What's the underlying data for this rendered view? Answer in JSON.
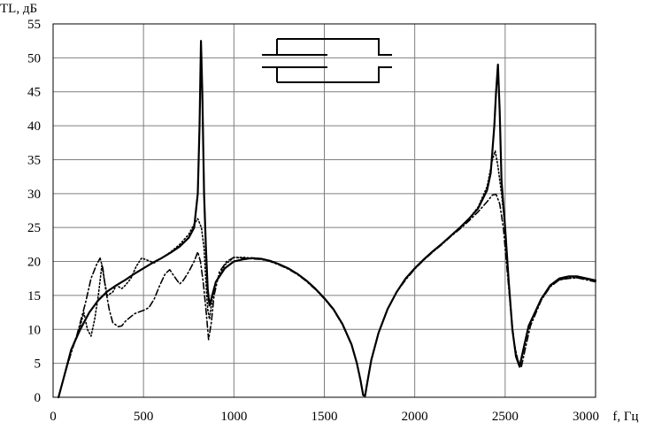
{
  "chart_data": {
    "type": "line",
    "title": "",
    "xlabel": "f, Гц",
    "ylabel": "TL, дБ",
    "xlim": [
      0,
      3000
    ],
    "ylim": [
      0,
      55
    ],
    "x_ticks": [
      "0",
      "500",
      "1000",
      "1500",
      "2000",
      "2500",
      "3000"
    ],
    "y_ticks": [
      "0",
      "5",
      "10",
      "15",
      "20",
      "25",
      "30",
      "35",
      "40",
      "45",
      "50",
      "55"
    ],
    "grid": true,
    "legend": "none",
    "inset_icon": "extended-inlet-muffler-schematic",
    "series": [
      {
        "style": "solid",
        "points": [
          [
            30,
            0
          ],
          [
            60,
            3
          ],
          [
            100,
            7
          ],
          [
            150,
            10
          ],
          [
            200,
            12.5
          ],
          [
            250,
            14.3
          ],
          [
            300,
            15.6
          ],
          [
            350,
            16.5
          ],
          [
            400,
            17.3
          ],
          [
            450,
            18.2
          ],
          [
            500,
            19
          ],
          [
            550,
            19.8
          ],
          [
            600,
            20.5
          ],
          [
            650,
            21.3
          ],
          [
            700,
            22.2
          ],
          [
            750,
            23.5
          ],
          [
            780,
            25
          ],
          [
            800,
            30
          ],
          [
            810,
            40
          ],
          [
            818,
            52.5
          ],
          [
            825,
            45
          ],
          [
            835,
            30
          ],
          [
            845,
            22
          ],
          [
            855,
            16
          ],
          [
            865,
            13.5
          ],
          [
            880,
            15
          ],
          [
            900,
            17
          ],
          [
            950,
            19
          ],
          [
            1000,
            20
          ],
          [
            1050,
            20.3
          ],
          [
            1100,
            20.5
          ],
          [
            1150,
            20.4
          ],
          [
            1200,
            20.1
          ],
          [
            1250,
            19.6
          ],
          [
            1300,
            19
          ],
          [
            1350,
            18.2
          ],
          [
            1400,
            17.2
          ],
          [
            1450,
            16
          ],
          [
            1500,
            14.6
          ],
          [
            1550,
            13
          ],
          [
            1600,
            10.8
          ],
          [
            1650,
            7.8
          ],
          [
            1680,
            5
          ],
          [
            1700,
            2.5
          ],
          [
            1715,
            0.3
          ],
          [
            1725,
            0.2
          ],
          [
            1740,
            2.5
          ],
          [
            1760,
            5.5
          ],
          [
            1800,
            9.5
          ],
          [
            1850,
            13
          ],
          [
            1900,
            15.5
          ],
          [
            1950,
            17.5
          ],
          [
            2000,
            19
          ],
          [
            2050,
            20.3
          ],
          [
            2100,
            21.5
          ],
          [
            2150,
            22.6
          ],
          [
            2200,
            23.8
          ],
          [
            2250,
            25
          ],
          [
            2300,
            26.3
          ],
          [
            2350,
            27.8
          ],
          [
            2400,
            30.5
          ],
          [
            2420,
            33
          ],
          [
            2440,
            40
          ],
          [
            2450,
            45
          ],
          [
            2460,
            49
          ],
          [
            2470,
            42
          ],
          [
            2480,
            32
          ],
          [
            2500,
            25
          ],
          [
            2520,
            17
          ],
          [
            2540,
            10
          ],
          [
            2560,
            6
          ],
          [
            2580,
            4.5
          ],
          [
            2600,
            7
          ],
          [
            2630,
            10.5
          ],
          [
            2700,
            14.5
          ],
          [
            2750,
            16.5
          ],
          [
            2800,
            17.5
          ],
          [
            2850,
            17.8
          ],
          [
            2900,
            17.8
          ],
          [
            2950,
            17.5
          ],
          [
            3000,
            17.2
          ]
        ]
      },
      {
        "style": "dotted",
        "points": [
          [
            30,
            0
          ],
          [
            60,
            3
          ],
          [
            100,
            7
          ],
          [
            130,
            9
          ],
          [
            150,
            10.5
          ],
          [
            170,
            12.5
          ],
          [
            190,
            10
          ],
          [
            210,
            9
          ],
          [
            230,
            11.5
          ],
          [
            250,
            15
          ],
          [
            270,
            19.5
          ],
          [
            285,
            17
          ],
          [
            300,
            15
          ],
          [
            330,
            15.5
          ],
          [
            350,
            16.5
          ],
          [
            380,
            16
          ],
          [
            400,
            16.5
          ],
          [
            430,
            17.5
          ],
          [
            460,
            19.3
          ],
          [
            490,
            20.5
          ],
          [
            520,
            20.2
          ],
          [
            560,
            19.8
          ],
          [
            600,
            20.5
          ],
          [
            650,
            21.4
          ],
          [
            700,
            22.5
          ],
          [
            750,
            24
          ],
          [
            780,
            25.5
          ],
          [
            800,
            26.3
          ],
          [
            820,
            25
          ],
          [
            835,
            22
          ],
          [
            845,
            17
          ],
          [
            855,
            13
          ],
          [
            865,
            11.5
          ],
          [
            880,
            14.5
          ],
          [
            900,
            17
          ],
          [
            950,
            19.5
          ],
          [
            1000,
            20.6
          ],
          [
            1050,
            20.6
          ],
          [
            1100,
            20.5
          ],
          [
            1150,
            20.4
          ],
          [
            1200,
            20.1
          ],
          [
            1250,
            19.6
          ],
          [
            1300,
            19
          ],
          [
            1350,
            18.2
          ],
          [
            1400,
            17.2
          ],
          [
            1450,
            16
          ],
          [
            1500,
            14.6
          ],
          [
            1550,
            13
          ],
          [
            1600,
            10.8
          ],
          [
            1650,
            7.8
          ],
          [
            1680,
            5
          ],
          [
            1700,
            2.5
          ],
          [
            1715,
            0.3
          ],
          [
            1725,
            0.2
          ],
          [
            1740,
            2.5
          ],
          [
            1760,
            5.5
          ],
          [
            1800,
            9.5
          ],
          [
            1850,
            13
          ],
          [
            1900,
            15.5
          ],
          [
            1950,
            17.5
          ],
          [
            2000,
            19
          ],
          [
            2050,
            20.3
          ],
          [
            2100,
            21.5
          ],
          [
            2150,
            22.6
          ],
          [
            2200,
            23.8
          ],
          [
            2250,
            25
          ],
          [
            2300,
            26.3
          ],
          [
            2350,
            28
          ],
          [
            2400,
            31
          ],
          [
            2430,
            35
          ],
          [
            2445,
            36.3
          ],
          [
            2460,
            34
          ],
          [
            2480,
            30
          ],
          [
            2500,
            25
          ],
          [
            2520,
            17
          ],
          [
            2540,
            10
          ],
          [
            2560,
            6
          ],
          [
            2580,
            4.8
          ],
          [
            2600,
            7
          ],
          [
            2630,
            10.5
          ],
          [
            2700,
            14.5
          ],
          [
            2750,
            16.3
          ],
          [
            2800,
            17.3
          ],
          [
            2850,
            17.6
          ],
          [
            2900,
            17.6
          ],
          [
            2950,
            17.4
          ],
          [
            3000,
            17.1
          ]
        ]
      },
      {
        "style": "dash-dot",
        "points": [
          [
            30,
            0
          ],
          [
            60,
            3
          ],
          [
            100,
            6.5
          ],
          [
            130,
            9
          ],
          [
            150,
            11
          ],
          [
            180,
            14
          ],
          [
            210,
            17.5
          ],
          [
            240,
            19.5
          ],
          [
            260,
            20.5
          ],
          [
            275,
            19
          ],
          [
            290,
            16
          ],
          [
            310,
            13
          ],
          [
            330,
            11
          ],
          [
            360,
            10.4
          ],
          [
            380,
            10.5
          ],
          [
            400,
            11.2
          ],
          [
            450,
            12.3
          ],
          [
            500,
            12.8
          ],
          [
            530,
            13.2
          ],
          [
            560,
            14.5
          ],
          [
            590,
            16.5
          ],
          [
            620,
            18.2
          ],
          [
            645,
            18.8
          ],
          [
            670,
            17.8
          ],
          [
            700,
            16.7
          ],
          [
            720,
            17.2
          ],
          [
            750,
            18.5
          ],
          [
            780,
            20
          ],
          [
            800,
            21.4
          ],
          [
            815,
            20
          ],
          [
            830,
            17
          ],
          [
            845,
            13
          ],
          [
            860,
            8.5
          ],
          [
            875,
            11
          ],
          [
            890,
            15
          ],
          [
            920,
            18.5
          ],
          [
            960,
            20
          ],
          [
            1000,
            20.6
          ],
          [
            1050,
            20.5
          ],
          [
            1100,
            20.4
          ],
          [
            1150,
            20.3
          ],
          [
            1200,
            20
          ],
          [
            1250,
            19.5
          ],
          [
            1300,
            18.9
          ],
          [
            1350,
            18.1
          ],
          [
            1400,
            17.1
          ],
          [
            1450,
            15.9
          ],
          [
            1500,
            14.5
          ],
          [
            1550,
            12.9
          ],
          [
            1600,
            10.7
          ],
          [
            1650,
            7.7
          ],
          [
            1680,
            5
          ],
          [
            1700,
            2.5
          ],
          [
            1715,
            0.3
          ],
          [
            1725,
            0.2
          ],
          [
            1740,
            2.5
          ],
          [
            1760,
            5.5
          ],
          [
            1800,
            9.5
          ],
          [
            1850,
            13
          ],
          [
            1900,
            15.5
          ],
          [
            1950,
            17.3
          ],
          [
            2000,
            18.9
          ],
          [
            2050,
            20.2
          ],
          [
            2100,
            21.4
          ],
          [
            2150,
            22.5
          ],
          [
            2200,
            23.7
          ],
          [
            2250,
            24.8
          ],
          [
            2300,
            26
          ],
          [
            2350,
            27.3
          ],
          [
            2400,
            28.8
          ],
          [
            2430,
            29.8
          ],
          [
            2450,
            29.9
          ],
          [
            2470,
            28.5
          ],
          [
            2490,
            25
          ],
          [
            2510,
            19
          ],
          [
            2530,
            13
          ],
          [
            2550,
            8
          ],
          [
            2570,
            5.5
          ],
          [
            2590,
            4.5
          ],
          [
            2610,
            7
          ],
          [
            2640,
            10.5
          ],
          [
            2700,
            14.3
          ],
          [
            2750,
            16.3
          ],
          [
            2800,
            17.3
          ],
          [
            2850,
            17.5
          ],
          [
            2900,
            17.6
          ],
          [
            2950,
            17.3
          ],
          [
            3000,
            17.0
          ]
        ]
      }
    ]
  }
}
